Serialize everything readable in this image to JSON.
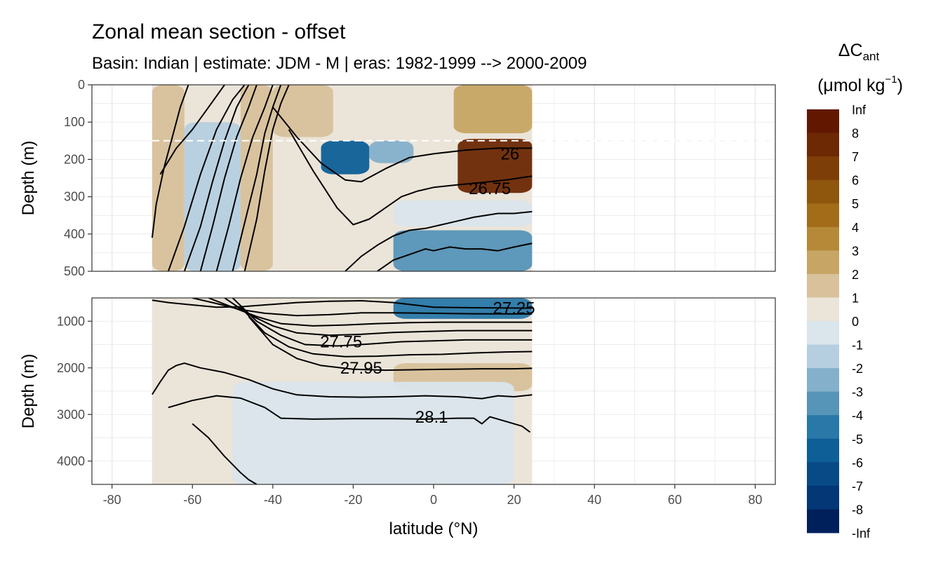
{
  "chart_data": {
    "type": "contour-section",
    "title": "Zonal mean section - offset",
    "subtitle": "Basin: Indian | estimate: JDM - M | eras: 1982-1999 --> 2000-2009",
    "xlabel": "latitude (°N)",
    "ylabel": "Depth (m)",
    "x_ticks": [
      -80,
      -60,
      -40,
      -20,
      0,
      20,
      40,
      60,
      80
    ],
    "xlim": [
      -85,
      85
    ],
    "panels": [
      {
        "name": "upper",
        "ylim": [
          0,
          500
        ],
        "y_ticks": [
          0,
          100,
          200,
          300,
          400,
          500
        ],
        "reference_line_depth": 150,
        "fill_regions": [
          {
            "lat": [
              -70,
              -62
            ],
            "depth": [
              0,
              500
            ],
            "value": 1.5
          },
          {
            "lat": [
              -62,
              -48
            ],
            "depth": [
              100,
              500
            ],
            "value": -1.5
          },
          {
            "lat": [
              -48,
              -40
            ],
            "depth": [
              0,
              500
            ],
            "value": 1.5
          },
          {
            "lat": [
              -40,
              -25
            ],
            "depth": [
              0,
              140
            ],
            "value": 1.5
          },
          {
            "lat": [
              -28,
              -16
            ],
            "depth": [
              150,
              240
            ],
            "value": -5.5
          },
          {
            "lat": [
              -16,
              -5
            ],
            "depth": [
              150,
              210
            ],
            "value": -2.5
          },
          {
            "lat": [
              5,
              24.5
            ],
            "depth": [
              0,
              130
            ],
            "value": 2.5
          },
          {
            "lat": [
              6,
              24.5
            ],
            "depth": [
              145,
              290
            ],
            "value": 7.5
          },
          {
            "lat": [
              -10,
              24.5
            ],
            "depth": [
              310,
              380
            ],
            "value": -0.5
          },
          {
            "lat": [
              -10,
              24.5
            ],
            "depth": [
              390,
              500
            ],
            "value": -3.5
          }
        ],
        "isopycnals": [
          {
            "lat": [
              -70,
              -69,
              -67,
              -65,
              -63,
              -61
            ],
            "depth": [
              410,
              320,
              220,
              140,
              60,
              0
            ]
          },
          {
            "lat": [
              -68,
              -64,
              -60,
              -56,
              -52
            ],
            "depth": [
              240,
              170,
              120,
              60,
              0
            ]
          },
          {
            "lat": [
              -66,
              -62,
              -58,
              -54,
              -50,
              -47
            ],
            "depth": [
              500,
              380,
              240,
              120,
              40,
              0
            ]
          },
          {
            "lat": [
              -62,
              -58,
              -55,
              -52,
              -49,
              -46
            ],
            "depth": [
              500,
              380,
              260,
              150,
              60,
              0
            ]
          },
          {
            "lat": [
              -58,
              -55,
              -52,
              -49,
              -46,
              -44
            ],
            "depth": [
              500,
              380,
              250,
              140,
              60,
              0
            ]
          },
          {
            "lat": [
              -54,
              -51,
              -48,
              -45,
              -42,
              -40
            ],
            "depth": [
              500,
              380,
              250,
              140,
              60,
              0
            ]
          },
          {
            "lat": [
              -50,
              -47,
              -44,
              -42,
              -40,
              -38
            ],
            "depth": [
              500,
              370,
              240,
              130,
              60,
              0
            ]
          },
          {
            "lat": [
              -47,
              -44,
              -42,
              -40,
              -38,
              -36
            ],
            "depth": [
              500,
              360,
              230,
              120,
              50,
              0
            ]
          },
          {
            "lat": [
              -40,
              -34,
              -28,
              -22,
              -18,
              -12,
              -6,
              0,
              8,
              16,
              24.5
            ],
            "depth": [
              60,
              140,
              210,
              255,
              260,
              225,
              195,
              185,
              175,
              170,
              170
            ],
            "label": "26",
            "label_lat": 19,
            "label_depth": 185
          },
          {
            "lat": [
              -36,
              -30,
              -24,
              -20,
              -16,
              -12,
              -8,
              -4,
              0,
              6,
              12,
              18,
              24.5
            ],
            "depth": [
              120,
              230,
              330,
              375,
              360,
              330,
              300,
              285,
              275,
              268,
              262,
              255,
              245
            ]
          },
          {
            "lat": [
              -22,
              -18,
              -14,
              -10,
              -6,
              -2,
              2,
              6,
              10,
              16,
              20,
              24.5
            ],
            "depth": [
              500,
              460,
              430,
              405,
              390,
              385,
              375,
              365,
              355,
              345,
              345,
              340
            ],
            "label": "26.75",
            "label_lat": 14,
            "label_depth": 278
          },
          {
            "lat": [
              -14,
              -10,
              -6,
              -2,
              0,
              4,
              8,
              12,
              16,
              20,
              24.5
            ],
            "depth": [
              500,
              470,
              455,
              440,
              445,
              435,
              440,
              440,
              445,
              435,
              425
            ]
          }
        ]
      },
      {
        "name": "lower",
        "ylim": [
          500,
          4500
        ],
        "y_ticks": [
          1000,
          2000,
          3000,
          4000
        ],
        "fill_regions": [
          {
            "lat": [
              -70,
              -10
            ],
            "depth": [
              500,
              2300
            ],
            "value": 0.5
          },
          {
            "lat": [
              -10,
              24.5
            ],
            "depth": [
              500,
              950
            ],
            "value": -4.5
          },
          {
            "lat": [
              -10,
              24.5
            ],
            "depth": [
              1900,
              2500
            ],
            "value": 1.5
          },
          {
            "lat": [
              -50,
              20
            ],
            "depth": [
              2300,
              4500
            ],
            "value": -0.5
          }
        ],
        "isopycnals": [
          {
            "lat": [
              -70,
              -66,
              -60,
              -54,
              -48,
              -42,
              -34,
              -26,
              -18,
              -10,
              0,
              10,
              24.5
            ],
            "depth": [
              550,
              600,
              650,
              700,
              690,
              650,
              600,
              570,
              560,
              600,
              700,
              710,
              720
            ],
            "label": "27.25",
            "label_lat": 20,
            "label_depth": 720
          },
          {
            "lat": [
              -60,
              -54,
              -48,
              -42,
              -34,
              -26,
              -18,
              -10,
              0,
              10,
              24.5
            ],
            "depth": [
              500,
              620,
              750,
              830,
              880,
              860,
              820,
              820,
              830,
              840,
              845
            ]
          },
          {
            "lat": [
              -56,
              -50,
              -44,
              -38,
              -30,
              -22,
              -14,
              -6,
              2,
              10,
              24.5
            ],
            "depth": [
              500,
              700,
              900,
              1050,
              1100,
              1080,
              1050,
              1030,
              1020,
              1020,
              1020
            ]
          },
          {
            "lat": [
              -52,
              -46,
              -40,
              -34,
              -26,
              -18,
              -10,
              -2,
              6,
              14,
              24.5
            ],
            "depth": [
              500,
              850,
              1100,
              1250,
              1300,
              1280,
              1240,
              1220,
              1200,
              1200,
              1200
            ]
          },
          {
            "lat": [
              -50,
              -44,
              -38,
              -32,
              -24,
              -16,
              -8,
              0,
              8,
              16,
              24.5
            ],
            "depth": [
              500,
              1000,
              1300,
              1500,
              1530,
              1490,
              1440,
              1420,
              1400,
              1400,
              1400
            ],
            "label": "27.75",
            "label_lat": -23,
            "label_depth": 1440
          },
          {
            "lat": [
              -48,
              -42,
              -36,
              -30,
              -22,
              -14,
              -6,
              2,
              10,
              18,
              24.5
            ],
            "depth": [
              700,
              1250,
              1550,
              1700,
              1760,
              1750,
              1720,
              1710,
              1680,
              1660,
              1650
            ]
          },
          {
            "lat": [
              -46,
              -40,
              -34,
              -28,
              -20,
              -12,
              -4,
              4,
              12,
              20,
              24.5
            ],
            "depth": [
              900,
              1500,
              1800,
              1950,
              2030,
              2050,
              2040,
              2030,
              2020,
              2020,
              2010
            ],
            "label": "27.95",
            "label_lat": -18,
            "label_depth": 2000
          },
          {
            "lat": [
              -70,
              -68,
              -66,
              -64,
              -62,
              -58,
              -52,
              -46,
              -40,
              -34,
              -26,
              -18,
              -10,
              -2,
              6,
              12,
              16,
              20,
              24.5
            ],
            "depth": [
              2570,
              2300,
              2050,
              1950,
              1900,
              2000,
              2100,
              2250,
              2450,
              2580,
              2620,
              2630,
              2620,
              2600,
              2620,
              2660,
              2600,
              2620,
              2580
            ]
          },
          {
            "lat": [
              -66,
              -60,
              -54,
              -48,
              -42,
              -38,
              -30,
              -20,
              -10,
              -2,
              6,
              10,
              12,
              14,
              18,
              22,
              24
            ],
            "depth": [
              2850,
              2700,
              2600,
              2650,
              2850,
              3080,
              3100,
              3090,
              3090,
              3100,
              3080,
              3080,
              3200,
              3050,
              3150,
              3250,
              3380
            ],
            "label": "28.1",
            "label_lat": -0.5,
            "label_depth": 3060
          },
          {
            "lat": [
              -60,
              -56,
              -52,
              -48,
              -46,
              -44
            ],
            "depth": [
              3200,
              3500,
              3900,
              4250,
              4400,
              4500
            ]
          }
        ]
      }
    ],
    "legend": {
      "title": "ΔC",
      "title_subscript": "ant",
      "units_open": "(μmol kg",
      "units_exponent": "−1",
      "units_close": ")",
      "labels": [
        "Inf",
        "8",
        "7",
        "6",
        "5",
        "4",
        "3",
        "2",
        "1",
        "0",
        "-1",
        "-2",
        "-3",
        "-4",
        "-5",
        "-6",
        "-7",
        "-8",
        "-Inf"
      ],
      "bins": [
        {
          "from": 8,
          "to": 99,
          "color": "#621800"
        },
        {
          "from": 7,
          "to": 8,
          "color": "#6d2804"
        },
        {
          "from": 6,
          "to": 7,
          "color": "#7e3e08"
        },
        {
          "from": 5,
          "to": 6,
          "color": "#8f560d"
        },
        {
          "from": 4,
          "to": 5,
          "color": "#a26c18"
        },
        {
          "from": 3,
          "to": 4,
          "color": "#b58937"
        },
        {
          "from": 2,
          "to": 3,
          "color": "#c7a564"
        },
        {
          "from": 1,
          "to": 2,
          "color": "#d8c19b"
        },
        {
          "from": 0,
          "to": 1,
          "color": "#ebe4d9"
        },
        {
          "from": -1,
          "to": 0,
          "color": "#dae5ec"
        },
        {
          "from": -2,
          "to": -1,
          "color": "#b6cfe0"
        },
        {
          "from": -3,
          "to": -2,
          "color": "#84b0cb"
        },
        {
          "from": -4,
          "to": -3,
          "color": "#5694b8"
        },
        {
          "from": -5,
          "to": -4,
          "color": "#2978a8"
        },
        {
          "from": -6,
          "to": -5,
          "color": "#0e5f98"
        },
        {
          "from": -7,
          "to": -6,
          "color": "#084a85"
        },
        {
          "from": -8,
          "to": -7,
          "color": "#033775"
        },
        {
          "from": -99,
          "to": -8,
          "color": "#00205c"
        }
      ]
    },
    "grid": true,
    "background_color": "#ffffff",
    "grid_color": "#ebebeb",
    "reference_line_color": "#ffffff",
    "contour_color": "#000000"
  }
}
